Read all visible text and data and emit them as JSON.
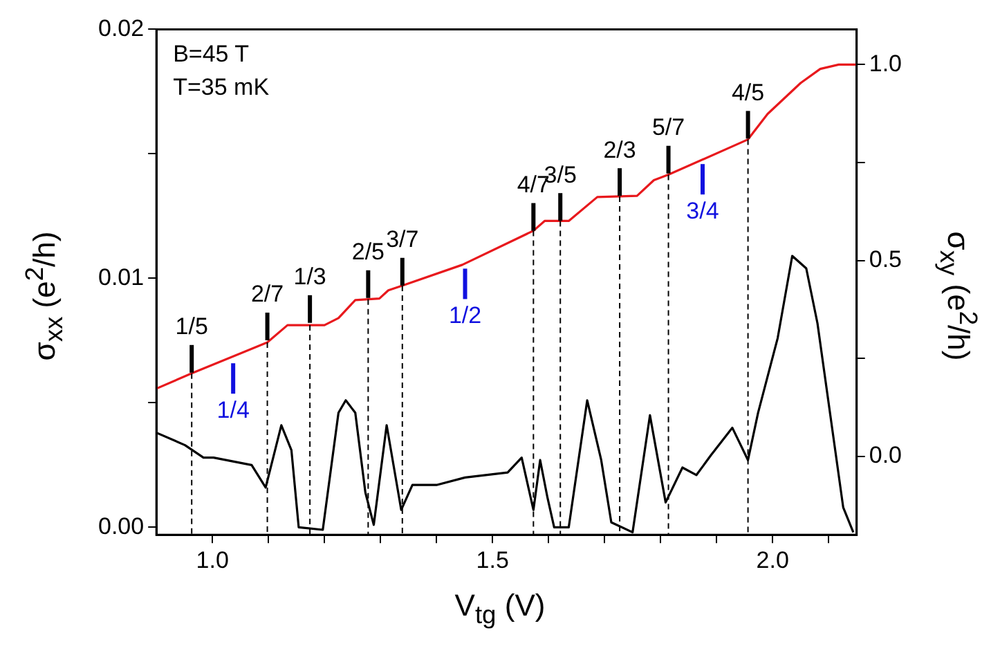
{
  "chart_data": {
    "type": "line",
    "xlabel": "V$_{tg}$ (V)",
    "ylabel": "σ$_{xx}$ (e$^{2}$/h)",
    "y2label": "σ$_{xy}$ (e$^{2}$/h)",
    "annotations": [
      "B=45 T",
      "T=35 mK",
      {
        "text": "1/4",
        "x": 1.037,
        "y": 0.0067
      },
      {
        "text": "1/2",
        "x": 1.451,
        "y": 0.0105
      },
      {
        "text": "3/4",
        "x": 1.875,
        "y": 0.0147
      },
      {
        "text": "1/5",
        "x": 0.963,
        "y": 0.0061
      },
      {
        "text": "2/7",
        "x": 1.098,
        "y": 0.0074
      },
      {
        "text": "1/3",
        "x": 1.174,
        "y": 0.0081
      },
      {
        "text": "2/5",
        "x": 1.278,
        "y": 0.0091
      },
      {
        "text": "3/7",
        "x": 1.339,
        "y": 0.0096
      },
      {
        "text": "4/7",
        "x": 1.573,
        "y": 0.0118
      },
      {
        "text": "3/5",
        "x": 1.621,
        "y": 0.0122
      },
      {
        "text": "2/3",
        "x": 1.727,
        "y": 0.0132
      },
      {
        "text": "5/7",
        "x": 1.814,
        "y": 0.0141
      },
      {
        "text": "4/5",
        "x": 1.956,
        "y": 0.0155
      }
    ],
    "series": [
      {
        "color": "#000000",
        "x": [
          0.9,
          0.951,
          0.984,
          1.002,
          1.07,
          1.095,
          1.123,
          1.141,
          1.154,
          1.197,
          1.225,
          1.238,
          1.255,
          1.273,
          1.288,
          1.311,
          1.337,
          1.357,
          1.4,
          1.451,
          1.527,
          1.552,
          1.573,
          1.585,
          1.598,
          1.61,
          1.636,
          1.669,
          1.694,
          1.712,
          1.75,
          1.781,
          1.809,
          1.839,
          1.864,
          1.89,
          1.928,
          1.956,
          1.974,
          2.009,
          2.035,
          2.06,
          2.08,
          2.126,
          2.144
        ],
        "values": [
          0.0038,
          0.0033,
          0.0028,
          0.0028,
          0.0025,
          0.0016,
          0.0041,
          0.0031,
          0.0,
          -0.0001,
          0.0046,
          0.0051,
          0.0046,
          0.0014,
          0.0001,
          0.0041,
          0.0007,
          0.0017,
          0.0017,
          0.002,
          0.0022,
          0.0028,
          0.0007,
          0.0027,
          0.0012,
          0.0,
          0.0,
          0.0051,
          0.0027,
          0.0002,
          -0.0002,
          0.0045,
          0.001,
          0.0024,
          0.0021,
          0.0029,
          0.004,
          0.0027,
          0.0046,
          0.0076,
          0.0109,
          0.0104,
          0.0082,
          0.0008,
          -0.0002
        ]
      },
      {
        "color": "#e8191d",
        "axis": "y2",
        "x": [
          0.9,
          0.963,
          1.098,
          1.134,
          1.2,
          1.225,
          1.255,
          1.298,
          1.314,
          1.337,
          1.446,
          1.573,
          1.593,
          1.636,
          1.687,
          1.758,
          1.788,
          1.814,
          1.956,
          1.991,
          2.05,
          2.085,
          2.118,
          2.15
        ],
        "values": [
          0.173,
          0.212,
          0.291,
          0.335,
          0.335,
          0.353,
          0.399,
          0.403,
          0.424,
          0.435,
          0.489,
          0.576,
          0.601,
          0.601,
          0.662,
          0.665,
          0.705,
          0.719,
          0.809,
          0.874,
          0.953,
          0.989,
          1.0,
          1.0
        ]
      }
    ],
    "xlim": [
      0.9,
      2.15
    ],
    "xticks": [
      {
        "value": 1.0,
        "label": "1.0"
      },
      {
        "value": 1.1,
        "label": null
      },
      {
        "value": 1.2,
        "label": null
      },
      {
        "value": 1.3,
        "label": null
      },
      {
        "value": 1.4,
        "label": null
      },
      {
        "value": 1.5,
        "label": "1.5"
      },
      {
        "value": 1.6,
        "label": null
      },
      {
        "value": 1.7,
        "label": null
      },
      {
        "value": 1.8,
        "label": null
      },
      {
        "value": 1.9,
        "label": null
      },
      {
        "value": 2.0,
        "label": "2.0"
      },
      {
        "value": 2.1,
        "label": null
      }
    ],
    "ylim": [
      -0.0003,
      0.02
    ],
    "yticks": [
      {
        "value": 0,
        "label": "0.00"
      },
      {
        "value": 0.005,
        "label": null
      },
      {
        "value": 0.01,
        "label": "0.01"
      },
      {
        "value": 0.015,
        "label": null
      },
      {
        "value": 0.02,
        "label": "0.02"
      }
    ],
    "y2lim": [
      -0.2,
      1.09
    ],
    "y2ticks": [
      {
        "value": 0,
        "label": "0.0"
      },
      {
        "value": 0.25,
        "label": null
      },
      {
        "value": 0.5,
        "label": "0.5"
      },
      {
        "value": 0.75,
        "label": null
      },
      {
        "value": 1.0,
        "label": "1.0"
      }
    ],
    "ref_lines": [
      {
        "axis": "x",
        "value": 0.963,
        "color": "#000000",
        "line_style": "dashed"
      },
      {
        "axis": "x",
        "value": 1.098,
        "color": "#000000",
        "line_style": "dashed"
      },
      {
        "axis": "x",
        "value": 1.174,
        "color": "#000000",
        "line_style": "dashed"
      },
      {
        "axis": "x",
        "value": 1.278,
        "color": "#000000",
        "line_style": "dashed"
      },
      {
        "axis": "x",
        "value": 1.339,
        "color": "#000000",
        "line_style": "dashed"
      },
      {
        "axis": "x",
        "value": 1.573,
        "color": "#000000",
        "line_style": "dashed"
      },
      {
        "axis": "x",
        "value": 1.621,
        "color": "#000000",
        "line_style": "dashed"
      },
      {
        "axis": "x",
        "value": 1.727,
        "color": "#000000",
        "line_style": "dashed"
      },
      {
        "axis": "x",
        "value": 1.814,
        "color": "#000000",
        "line_style": "dashed"
      },
      {
        "axis": "x",
        "value": 1.956,
        "color": "#000000",
        "line_style": "dashed"
      }
    ],
    "grid": false,
    "legend": false,
    "marker": "none",
    "line_style": "solid"
  }
}
